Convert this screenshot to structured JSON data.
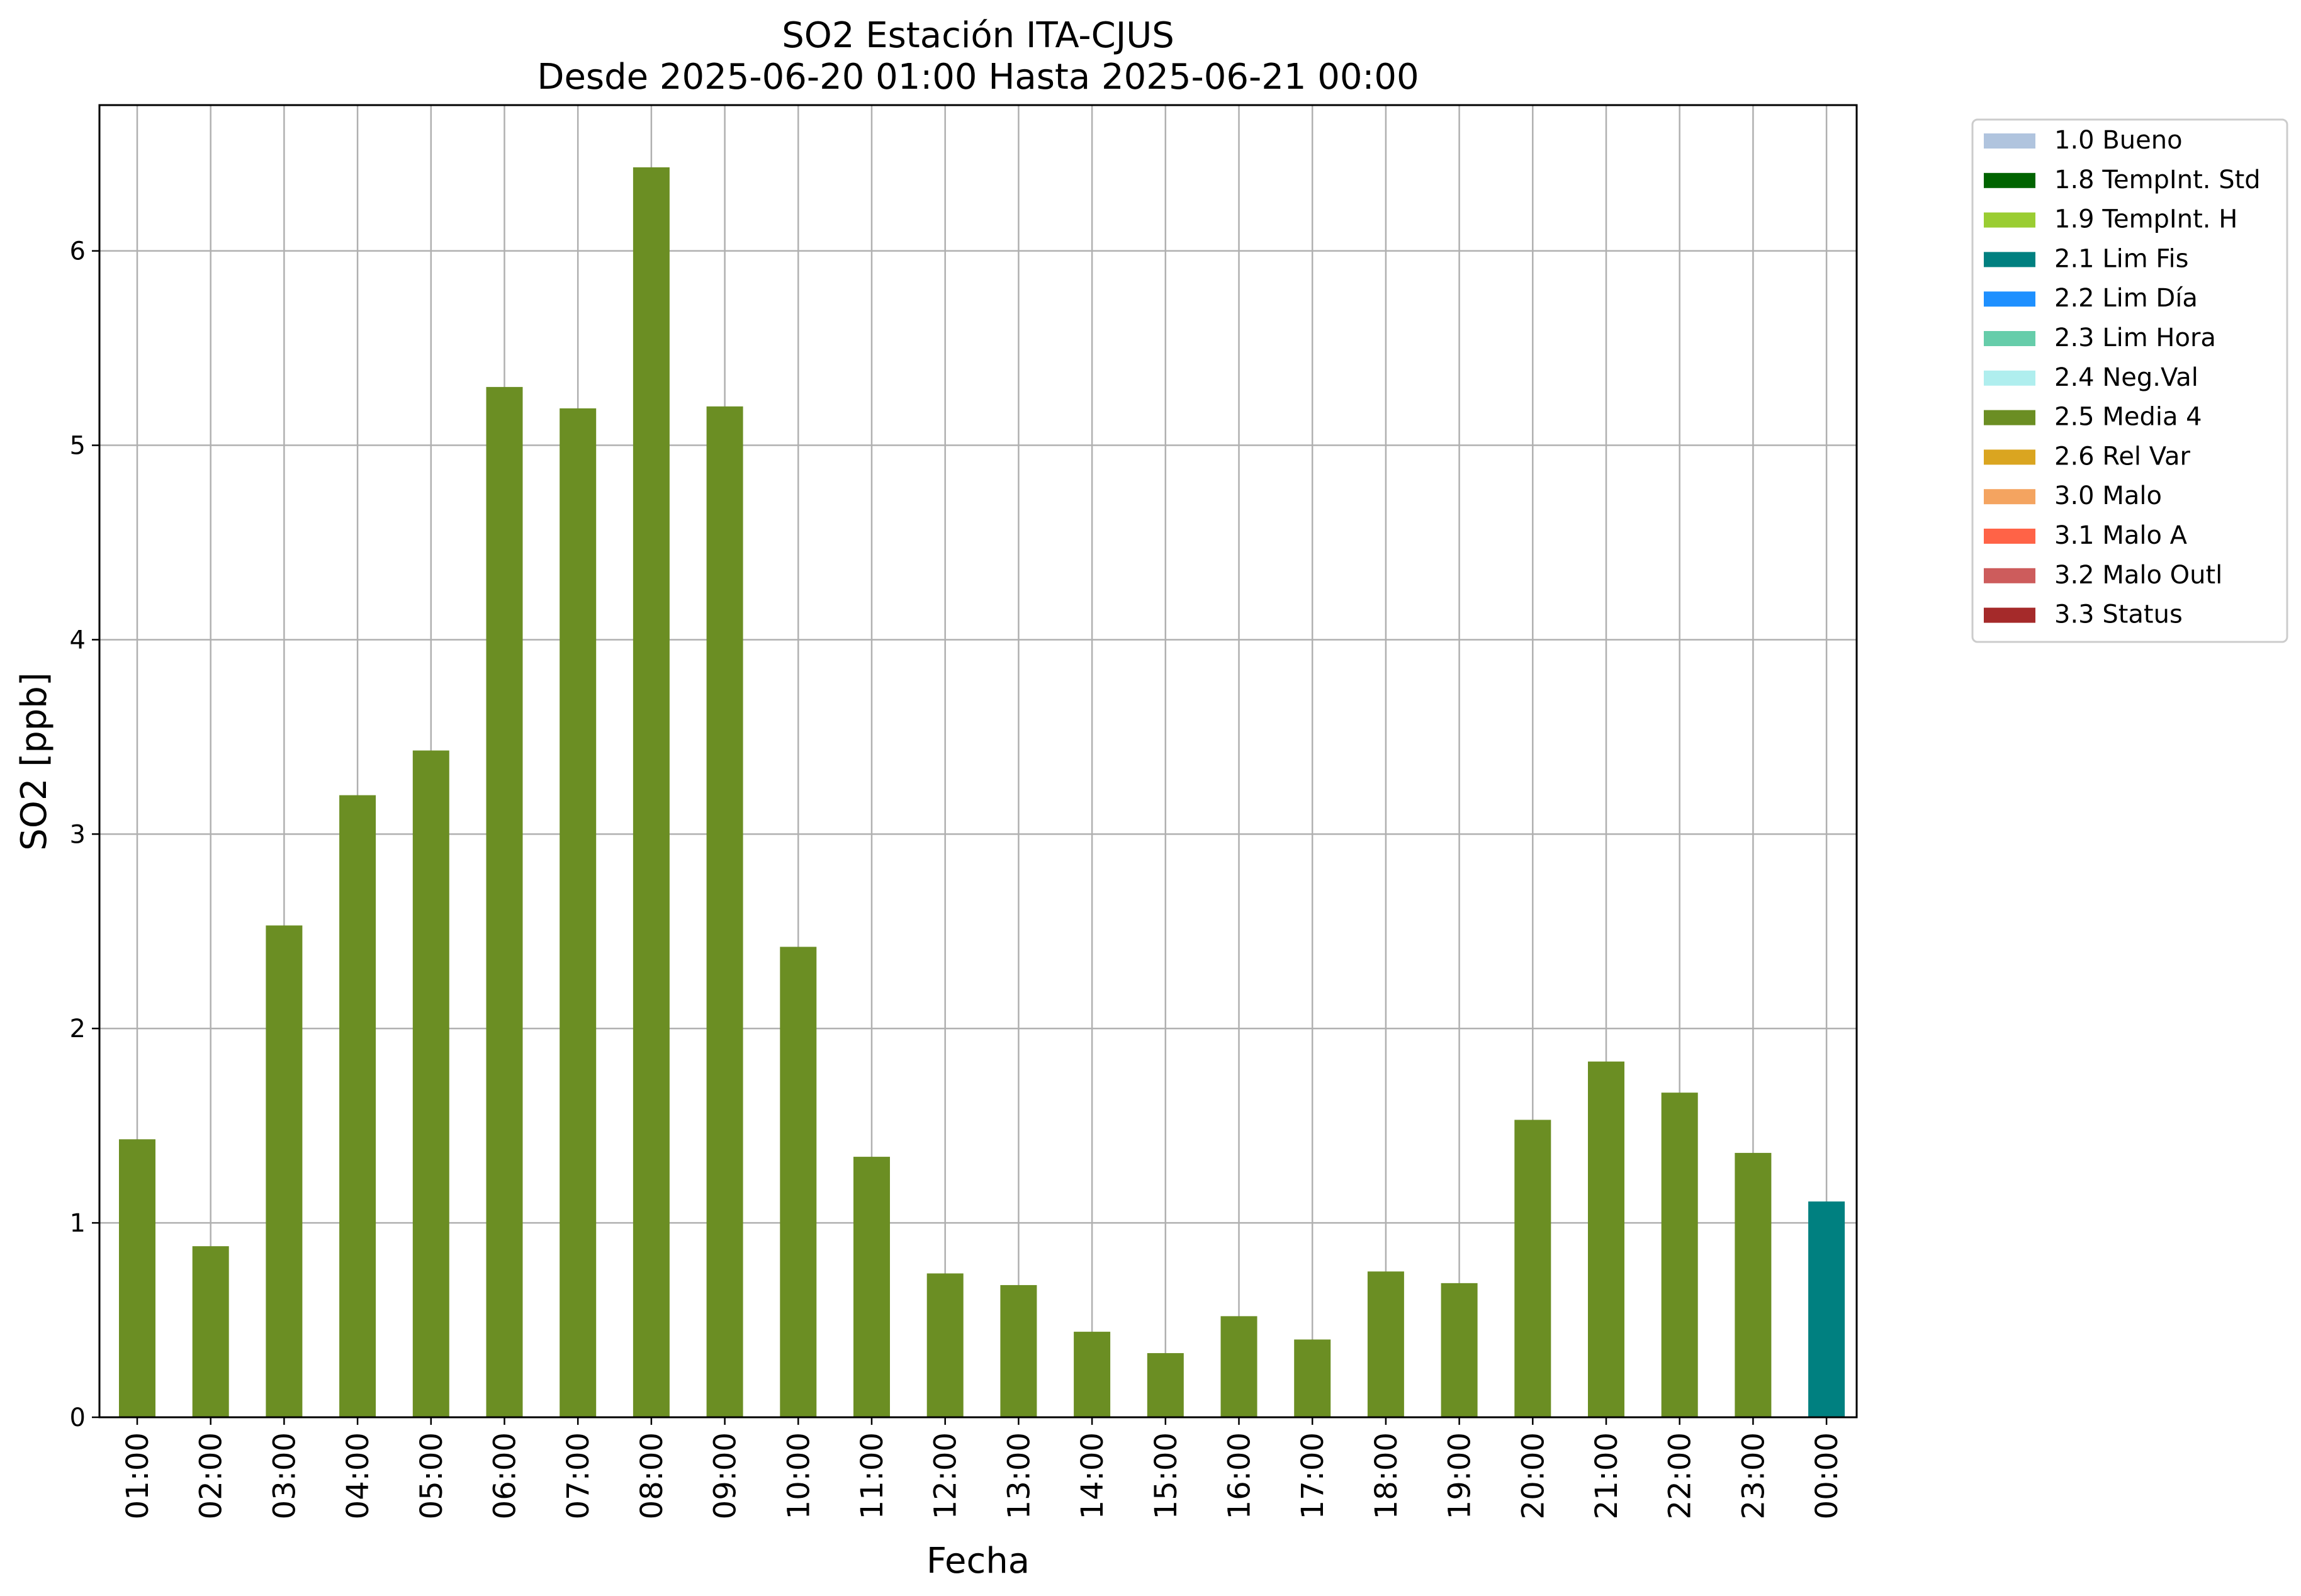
{
  "chart_data": {
    "type": "bar",
    "title": "SO2 Estación ITA-CJUS",
    "subtitle": "Desde 2025-06-20 01:00 Hasta 2025-06-21 00:00",
    "xlabel": "Fecha",
    "ylabel": "SO2 [ppb]",
    "ylim": [
      0,
      6.75
    ],
    "yticks": [
      0,
      1,
      2,
      3,
      4,
      5,
      6
    ],
    "grid": true,
    "legend_position": "outside-top-right",
    "categories": [
      "01:00",
      "02:00",
      "03:00",
      "04:00",
      "05:00",
      "06:00",
      "07:00",
      "08:00",
      "09:00",
      "10:00",
      "11:00",
      "12:00",
      "13:00",
      "14:00",
      "15:00",
      "16:00",
      "17:00",
      "18:00",
      "19:00",
      "20:00",
      "21:00",
      "22:00",
      "23:00",
      "00:00"
    ],
    "values": [
      1.43,
      0.88,
      2.53,
      3.2,
      3.43,
      5.3,
      5.19,
      6.43,
      5.2,
      2.42,
      1.34,
      0.74,
      0.68,
      0.44,
      0.33,
      0.52,
      0.4,
      0.75,
      0.69,
      1.53,
      1.83,
      1.67,
      1.36,
      1.11
    ],
    "bar_flags": [
      "2.5 Media 4",
      "2.5 Media 4",
      "2.5 Media 4",
      "2.5 Media 4",
      "2.5 Media 4",
      "2.5 Media 4",
      "2.5 Media 4",
      "2.5 Media 4",
      "2.5 Media 4",
      "2.5 Media 4",
      "2.5 Media 4",
      "2.5 Media 4",
      "2.5 Media 4",
      "2.5 Media 4",
      "2.5 Media 4",
      "2.5 Media 4",
      "2.5 Media 4",
      "2.5 Media 4",
      "2.5 Media 4",
      "2.5 Media 4",
      "2.5 Media 4",
      "2.5 Media 4",
      "2.5 Media 4",
      "2.1 Lim Fis"
    ],
    "legend": [
      {
        "label": "1.0 Bueno",
        "color": "#b0c4de"
      },
      {
        "label": "1.8 TempInt. Std",
        "color": "#006400"
      },
      {
        "label": "1.9 TempInt. H",
        "color": "#9acd32"
      },
      {
        "label": "2.1 Lim Fis",
        "color": "#008080"
      },
      {
        "label": "2.2 Lim Día",
        "color": "#1e90ff"
      },
      {
        "label": "2.3 Lim Hora",
        "color": "#66cdaa"
      },
      {
        "label": "2.4 Neg.Val",
        "color": "#afeeee"
      },
      {
        "label": "2.5 Media 4",
        "color": "#6b8e23"
      },
      {
        "label": "2.6 Rel Var",
        "color": "#daa520"
      },
      {
        "label": "3.0 Malo",
        "color": "#f4a460"
      },
      {
        "label": "3.1 Malo A",
        "color": "#ff6347"
      },
      {
        "label": "3.2 Malo Outl",
        "color": "#cd5c5c"
      },
      {
        "label": "3.3 Status",
        "color": "#a52a2a"
      }
    ]
  }
}
